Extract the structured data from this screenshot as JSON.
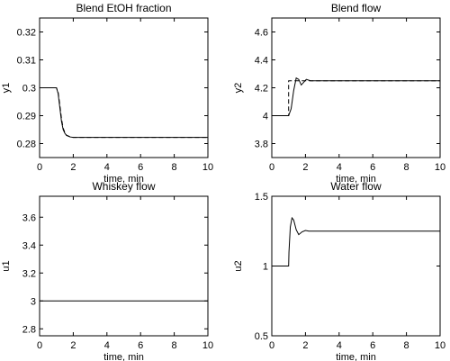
{
  "chart_data": [
    {
      "type": "line",
      "title": "Blend EtOH fraction",
      "xlabel": "time, min",
      "ylabel": "y1",
      "xlim": [
        0,
        10
      ],
      "ylim": [
        0.275,
        0.325
      ],
      "xticks": [
        0,
        2,
        4,
        6,
        8,
        10
      ],
      "xtick_labels": [
        "0",
        "2",
        "4",
        "6",
        "8",
        "10"
      ],
      "yticks": [
        0.28,
        0.29,
        0.3,
        0.31,
        0.32
      ],
      "ytick_labels": [
        "0.28",
        "0.29",
        "0.3",
        "0.31",
        "0.32"
      ],
      "grid": false,
      "series": [
        {
          "style": "solid",
          "x": [
            0,
            1.0,
            1.1,
            1.2,
            1.3,
            1.4,
            1.5,
            1.6,
            1.8,
            2.0,
            2.5,
            10
          ],
          "y": [
            0.3,
            0.3,
            0.298,
            0.293,
            0.288,
            0.285,
            0.2837,
            0.2829,
            0.2824,
            0.2822,
            0.2822,
            0.2822
          ]
        },
        {
          "style": "dashed",
          "x": [
            0,
            1.0,
            1.1,
            1.2,
            1.3,
            1.4,
            1.5,
            1.6,
            1.8,
            2.0,
            2.5,
            10
          ],
          "y": [
            0.3,
            0.3,
            0.2985,
            0.294,
            0.289,
            0.2855,
            0.284,
            0.283,
            0.2825,
            0.2822,
            0.2822,
            0.2822
          ]
        }
      ]
    },
    {
      "type": "line",
      "title": "Blend flow",
      "xlabel": "time, min",
      "ylabel": "y2",
      "xlim": [
        0,
        10
      ],
      "ylim": [
        3.7,
        4.7
      ],
      "xticks": [
        0,
        2,
        4,
        6,
        8,
        10
      ],
      "xtick_labels": [
        "0",
        "2",
        "4",
        "6",
        "8",
        "10"
      ],
      "yticks": [
        3.8,
        4.0,
        4.2,
        4.4,
        4.6
      ],
      "ytick_labels": [
        "3.8",
        "4",
        "4.2",
        "4.4",
        "4.6"
      ],
      "grid": false,
      "series": [
        {
          "style": "solid",
          "x": [
            0,
            1.0,
            1.15,
            1.3,
            1.45,
            1.6,
            1.75,
            1.9,
            2.05,
            2.3,
            10
          ],
          "y": [
            4.0,
            4.0,
            4.05,
            4.18,
            4.27,
            4.26,
            4.22,
            4.24,
            4.26,
            4.25,
            4.25
          ]
        },
        {
          "style": "dashed",
          "x": [
            0,
            1.0,
            1.0,
            10
          ],
          "y": [
            4.0,
            4.0,
            4.25,
            4.25
          ]
        }
      ]
    },
    {
      "type": "line",
      "title": "Whiskey flow",
      "xlabel": "time, min",
      "ylabel": "u1",
      "xlim": [
        0,
        10
      ],
      "ylim": [
        2.75,
        3.75
      ],
      "xticks": [
        0,
        2,
        4,
        6,
        8,
        10
      ],
      "xtick_labels": [
        "0",
        "2",
        "4",
        "6",
        "8",
        "10"
      ],
      "yticks": [
        2.8,
        3.0,
        3.2,
        3.4,
        3.6
      ],
      "ytick_labels": [
        "2.8",
        "3",
        "3.2",
        "3.4",
        "3.6"
      ],
      "grid": false,
      "series": [
        {
          "style": "solid",
          "x": [
            0,
            10
          ],
          "y": [
            3.0,
            3.0
          ]
        }
      ]
    },
    {
      "type": "line",
      "title": "Water flow",
      "xlabel": "time, min",
      "ylabel": "u2",
      "xlim": [
        0,
        10
      ],
      "ylim": [
        0.5,
        1.5
      ],
      "xticks": [
        0,
        2,
        4,
        6,
        8,
        10
      ],
      "xtick_labels": [
        "0",
        "2",
        "4",
        "6",
        "8",
        "10"
      ],
      "yticks": [
        0.5,
        1.0,
        1.5
      ],
      "ytick_labels": [
        "0.5",
        "1",
        "1.5"
      ],
      "grid": false,
      "series": [
        {
          "style": "solid",
          "x": [
            0,
            1.0,
            1.02,
            1.1,
            1.2,
            1.3,
            1.45,
            1.6,
            1.8,
            2.0,
            2.2,
            2.5,
            10
          ],
          "y": [
            1.0,
            1.0,
            1.1,
            1.28,
            1.345,
            1.33,
            1.26,
            1.225,
            1.245,
            1.255,
            1.25,
            1.25,
            1.25
          ]
        }
      ]
    }
  ]
}
